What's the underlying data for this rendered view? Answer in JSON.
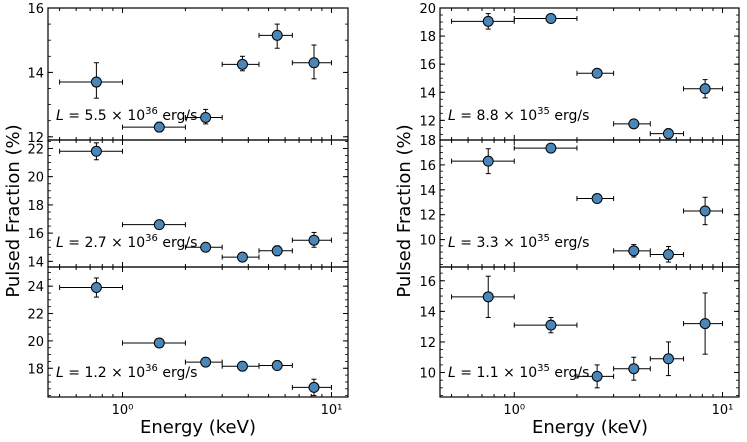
{
  "figure": {
    "xlabel": "Energy (keV)",
    "ylabel": "Pulsed Fraction (%)",
    "x_scale": "log",
    "xlim": [
      0.44,
      12
    ],
    "x_ticks": [
      {
        "value": 1,
        "label": "10⁰"
      },
      {
        "value": 10,
        "label": "10¹"
      }
    ],
    "marker_color": "#4a86b8",
    "marker_edge_color": "#000000",
    "errorbar_color": "#000000"
  },
  "chart_data": [
    {
      "type": "scatter",
      "panel": "left-top",
      "annotation": "L = 5.5 × 10^36 erg/s",
      "annot_parts": {
        "prefix": "L",
        "mid": " = 5.5 × 10",
        "exp": "36",
        "suffix": " erg/s"
      },
      "ylim": [
        11.9,
        16.0
      ],
      "y_ticks": [
        12,
        14,
        16
      ],
      "points": [
        {
          "x": 0.75,
          "y": 13.7,
          "xlo": 0.5,
          "xhi": 1.0,
          "ylo": 13.2,
          "yhi": 14.3
        },
        {
          "x": 1.5,
          "y": 12.3,
          "xlo": 1.0,
          "xhi": 2.0,
          "ylo": 12.15,
          "yhi": 12.45
        },
        {
          "x": 2.5,
          "y": 12.6,
          "xlo": 2.0,
          "xhi": 3.0,
          "ylo": 12.4,
          "yhi": 12.85
        },
        {
          "x": 3.75,
          "y": 14.25,
          "xlo": 3.0,
          "xhi": 4.5,
          "ylo": 14.05,
          "yhi": 14.5
        },
        {
          "x": 5.5,
          "y": 15.15,
          "xlo": 4.5,
          "xhi": 6.5,
          "ylo": 14.75,
          "yhi": 15.5
        },
        {
          "x": 8.25,
          "y": 14.3,
          "xlo": 6.5,
          "xhi": 10.0,
          "ylo": 13.8,
          "yhi": 14.85
        }
      ]
    },
    {
      "type": "scatter",
      "panel": "left-middle",
      "annotation": "L = 2.7 × 10^36 erg/s",
      "annot_parts": {
        "prefix": "L",
        "mid": " = 2.7 × 10",
        "exp": "36",
        "suffix": " erg/s"
      },
      "ylim": [
        13.6,
        22.6
      ],
      "y_ticks": [
        14,
        16,
        18,
        20,
        22
      ],
      "points": [
        {
          "x": 0.75,
          "y": 21.8,
          "xlo": 0.5,
          "xhi": 1.0,
          "ylo": 21.2,
          "yhi": 22.4
        },
        {
          "x": 1.5,
          "y": 16.6,
          "xlo": 1.0,
          "xhi": 2.0,
          "ylo": 16.45,
          "yhi": 16.75
        },
        {
          "x": 2.5,
          "y": 15.0,
          "xlo": 2.0,
          "xhi": 3.0,
          "ylo": 14.8,
          "yhi": 15.25
        },
        {
          "x": 3.75,
          "y": 14.3,
          "xlo": 3.0,
          "xhi": 4.5,
          "ylo": 14.1,
          "yhi": 14.55
        },
        {
          "x": 5.5,
          "y": 14.75,
          "xlo": 4.5,
          "xhi": 6.5,
          "ylo": 14.4,
          "yhi": 15.1
        },
        {
          "x": 8.25,
          "y": 15.5,
          "xlo": 6.5,
          "xhi": 10.0,
          "ylo": 15.0,
          "yhi": 16.05
        }
      ]
    },
    {
      "type": "scatter",
      "panel": "left-bottom",
      "annotation": "L = 1.2 × 10^36 erg/s",
      "annot_parts": {
        "prefix": "L",
        "mid": " = 1.2 × 10",
        "exp": "36",
        "suffix": " erg/s"
      },
      "ylim": [
        15.9,
        25.4
      ],
      "y_ticks": [
        18,
        20,
        22,
        24
      ],
      "points": [
        {
          "x": 0.75,
          "y": 23.9,
          "xlo": 0.5,
          "xhi": 1.0,
          "ylo": 23.2,
          "yhi": 24.6
        },
        {
          "x": 1.5,
          "y": 19.85,
          "xlo": 1.0,
          "xhi": 2.0,
          "ylo": 19.65,
          "yhi": 20.05
        },
        {
          "x": 2.5,
          "y": 18.45,
          "xlo": 2.0,
          "xhi": 3.0,
          "ylo": 18.25,
          "yhi": 18.65
        },
        {
          "x": 3.75,
          "y": 18.15,
          "xlo": 3.0,
          "xhi": 4.5,
          "ylo": 17.95,
          "yhi": 18.35
        },
        {
          "x": 5.5,
          "y": 18.2,
          "xlo": 4.5,
          "xhi": 6.5,
          "ylo": 17.9,
          "yhi": 18.55
        },
        {
          "x": 8.25,
          "y": 16.6,
          "xlo": 6.5,
          "xhi": 10.0,
          "ylo": 16.0,
          "yhi": 17.2
        }
      ]
    },
    {
      "type": "scatter",
      "panel": "right-top",
      "annotation": "L = 8.8 × 10^35 erg/s",
      "annot_parts": {
        "prefix": "L",
        "mid": " = 8.8 × 10",
        "exp": "35",
        "suffix": " erg/s"
      },
      "ylim": [
        10.6,
        20.0
      ],
      "y_ticks": [
        12,
        14,
        16,
        18,
        20
      ],
      "points": [
        {
          "x": 0.75,
          "y": 19.05,
          "xlo": 0.5,
          "xhi": 1.0,
          "ylo": 18.5,
          "yhi": 19.6
        },
        {
          "x": 1.5,
          "y": 19.25,
          "xlo": 1.0,
          "xhi": 2.0,
          "ylo": 19.05,
          "yhi": 19.45
        },
        {
          "x": 2.5,
          "y": 15.35,
          "xlo": 2.0,
          "xhi": 3.0,
          "ylo": 15.15,
          "yhi": 15.55
        },
        {
          "x": 3.75,
          "y": 11.75,
          "xlo": 3.0,
          "xhi": 4.5,
          "ylo": 11.55,
          "yhi": 11.95
        },
        {
          "x": 5.5,
          "y": 11.05,
          "xlo": 4.5,
          "xhi": 6.5,
          "ylo": 10.7,
          "yhi": 11.4
        },
        {
          "x": 8.25,
          "y": 14.25,
          "xlo": 6.5,
          "xhi": 10.0,
          "ylo": 13.6,
          "yhi": 14.9
        }
      ]
    },
    {
      "type": "scatter",
      "panel": "right-middle",
      "annotation": "L = 3.3 × 10^35 erg/s",
      "annot_parts": {
        "prefix": "L",
        "mid": " = 3.3 × 10",
        "exp": "35",
        "suffix": " erg/s"
      },
      "ylim": [
        7.8,
        18.0
      ],
      "y_ticks": [
        10,
        12,
        14,
        16,
        18
      ],
      "points": [
        {
          "x": 0.75,
          "y": 16.3,
          "xlo": 0.5,
          "xhi": 1.0,
          "ylo": 15.3,
          "yhi": 17.3
        },
        {
          "x": 1.5,
          "y": 17.35,
          "xlo": 1.0,
          "xhi": 2.0,
          "ylo": 17.15,
          "yhi": 17.55
        },
        {
          "x": 2.5,
          "y": 13.3,
          "xlo": 2.0,
          "xhi": 3.0,
          "ylo": 13.05,
          "yhi": 13.55
        },
        {
          "x": 3.75,
          "y": 9.1,
          "xlo": 3.0,
          "xhi": 4.5,
          "ylo": 8.6,
          "yhi": 9.6
        },
        {
          "x": 5.5,
          "y": 8.8,
          "xlo": 4.5,
          "xhi": 6.5,
          "ylo": 8.2,
          "yhi": 9.45
        },
        {
          "x": 8.25,
          "y": 12.3,
          "xlo": 6.5,
          "xhi": 10.0,
          "ylo": 11.2,
          "yhi": 13.4
        }
      ]
    },
    {
      "type": "scatter",
      "panel": "right-bottom",
      "annotation": "L = 1.1 × 10^35 erg/s",
      "annot_parts": {
        "prefix": "L",
        "mid": " = 1.1 × 10",
        "exp": "35",
        "suffix": " erg/s"
      },
      "ylim": [
        8.4,
        16.9
      ],
      "y_ticks": [
        10,
        12,
        14,
        16
      ],
      "points": [
        {
          "x": 0.75,
          "y": 14.95,
          "xlo": 0.5,
          "xhi": 1.0,
          "ylo": 13.6,
          "yhi": 16.3
        },
        {
          "x": 1.5,
          "y": 13.1,
          "xlo": 1.0,
          "xhi": 2.0,
          "ylo": 12.6,
          "yhi": 13.6
        },
        {
          "x": 2.5,
          "y": 9.75,
          "xlo": 2.0,
          "xhi": 3.0,
          "ylo": 9.0,
          "yhi": 10.5
        },
        {
          "x": 3.75,
          "y": 10.25,
          "xlo": 3.0,
          "xhi": 4.5,
          "ylo": 9.5,
          "yhi": 11.0
        },
        {
          "x": 5.5,
          "y": 10.9,
          "xlo": 4.5,
          "xhi": 6.5,
          "ylo": 9.8,
          "yhi": 12.0
        },
        {
          "x": 8.25,
          "y": 13.2,
          "xlo": 6.5,
          "xhi": 10.0,
          "ylo": 11.2,
          "yhi": 15.2
        }
      ]
    }
  ]
}
